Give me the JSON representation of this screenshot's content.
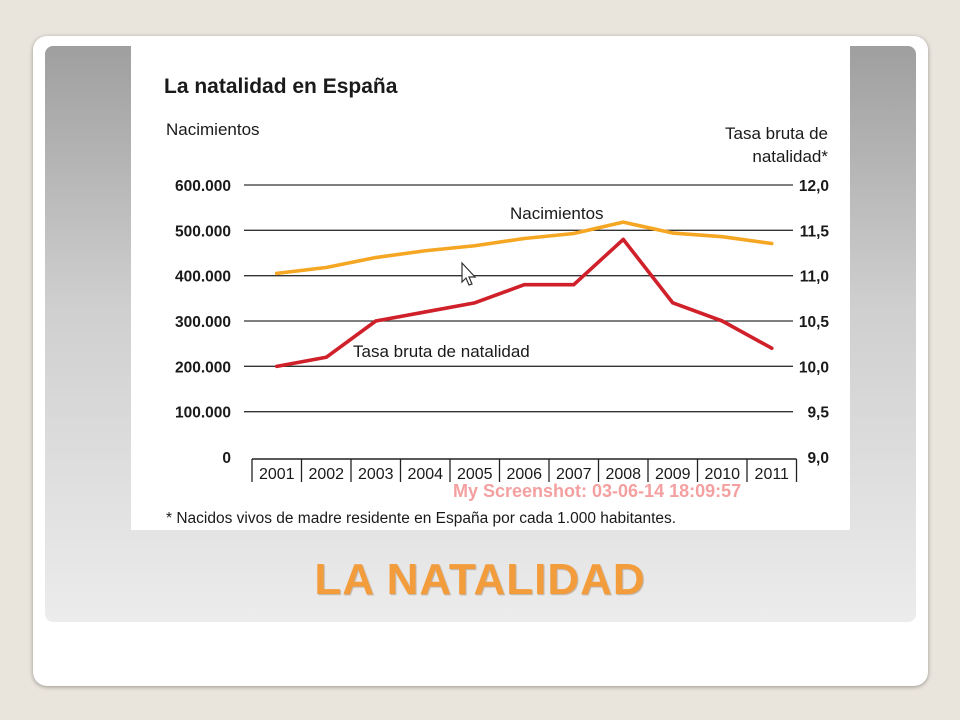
{
  "slide": {
    "title": "LA NATALIDAD",
    "accent_color": "#f39c3c"
  },
  "screenshot_watermark": "My Screenshot: 03-06-14 18:09:57",
  "chart_data": {
    "type": "line",
    "title": "La natalidad en España",
    "left_axis_label": "Nacimientos",
    "right_axis_label_lines": [
      "Tasa bruta de",
      "natalidad*"
    ],
    "footnote": "* Nacidos vivos de madre residente en España por cada 1.000 habitantes.",
    "categories": [
      "2001",
      "2002",
      "2003",
      "2004",
      "2005",
      "2006",
      "2007",
      "2008",
      "2009",
      "2010",
      "2011"
    ],
    "left_axis": {
      "ylim": [
        0,
        600000
      ],
      "ticks": [
        0,
        100000,
        200000,
        300000,
        400000,
        500000,
        600000
      ],
      "tick_labels": [
        "0",
        "100.000",
        "200.000",
        "300.000",
        "400.000",
        "500.000",
        "600.000"
      ]
    },
    "right_axis": {
      "ylim": [
        9.0,
        12.0
      ],
      "ticks": [
        9.0,
        9.5,
        10.0,
        10.5,
        11.0,
        11.5,
        12.0
      ],
      "tick_labels": [
        "9,0",
        "9,5",
        "10,0",
        "10,5",
        "11,0",
        "11,5",
        "12,0"
      ]
    },
    "grid": true,
    "series": [
      {
        "name": "Nacimientos",
        "axis": "left",
        "color": "#f5a623",
        "values": [
          405000,
          418000,
          440000,
          455000,
          466000,
          482000,
          493000,
          518000,
          494000,
          486000,
          471000
        ]
      },
      {
        "name": "Tasa bruta de natalidad",
        "axis": "right",
        "color": "#d0202a",
        "values": [
          10.0,
          10.1,
          10.5,
          10.6,
          10.7,
          10.9,
          10.9,
          11.4,
          10.7,
          10.5,
          10.2
        ]
      }
    ]
  }
}
